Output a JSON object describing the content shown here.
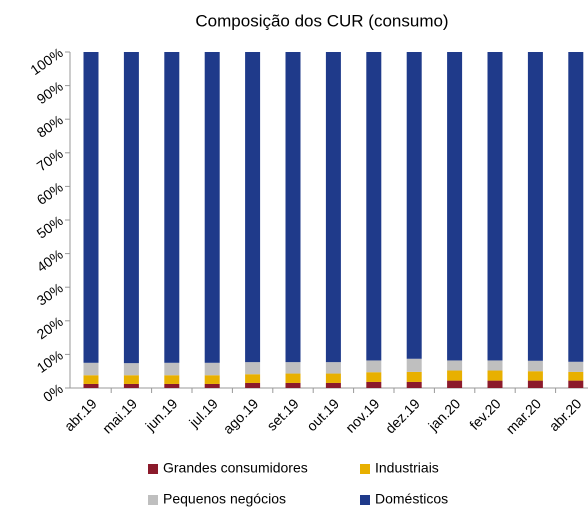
{
  "chart_data": {
    "type": "stacked_bar",
    "title": "Composição dos CUR (consumo)",
    "categories": [
      "abr.19",
      "mai.19",
      "jun.19",
      "jul.19",
      "ago.19",
      "set.19",
      "out.19",
      "nov.19",
      "dez.19",
      "jan.20",
      "fev.20",
      "mar.20",
      "abr.20"
    ],
    "series": [
      {
        "name": "Grandes consumidores",
        "color": "#8b1a2b",
        "values": [
          1.2,
          1.2,
          1.2,
          1.2,
          1.5,
          1.5,
          1.5,
          1.8,
          1.8,
          2.2,
          2.2,
          2.2,
          2.2
        ]
      },
      {
        "name": "Industriais",
        "color": "#e8b000",
        "values": [
          2.6,
          2.6,
          2.6,
          2.6,
          2.6,
          2.8,
          2.8,
          2.9,
          3.0,
          3.0,
          3.0,
          2.8,
          2.6
        ]
      },
      {
        "name": "Pequenos negócios",
        "color": "#bfbfbf",
        "values": [
          3.7,
          3.6,
          3.7,
          3.7,
          3.6,
          3.4,
          3.4,
          3.5,
          3.9,
          3.0,
          3.0,
          3.1,
          3.0
        ]
      },
      {
        "name": "Domésticos",
        "color": "#1f3a8a",
        "values": [
          92.5,
          92.6,
          92.5,
          92.5,
          92.3,
          92.3,
          92.3,
          91.8,
          91.3,
          91.8,
          91.8,
          91.9,
          92.2
        ]
      }
    ],
    "ylim": [
      0,
      100
    ],
    "yticks": [
      {
        "value": 0,
        "label": "0%"
      },
      {
        "value": 10,
        "label": "10%"
      },
      {
        "value": 20,
        "label": "20%"
      },
      {
        "value": 30,
        "label": "30%"
      },
      {
        "value": 40,
        "label": "40%"
      },
      {
        "value": 50,
        "label": "50%"
      },
      {
        "value": 60,
        "label": "60%"
      },
      {
        "value": 70,
        "label": "70%"
      },
      {
        "value": 80,
        "label": "80%"
      },
      {
        "value": 90,
        "label": "90%"
      },
      {
        "value": 100,
        "label": "100%"
      }
    ],
    "grid": false,
    "legend": "bottom"
  }
}
